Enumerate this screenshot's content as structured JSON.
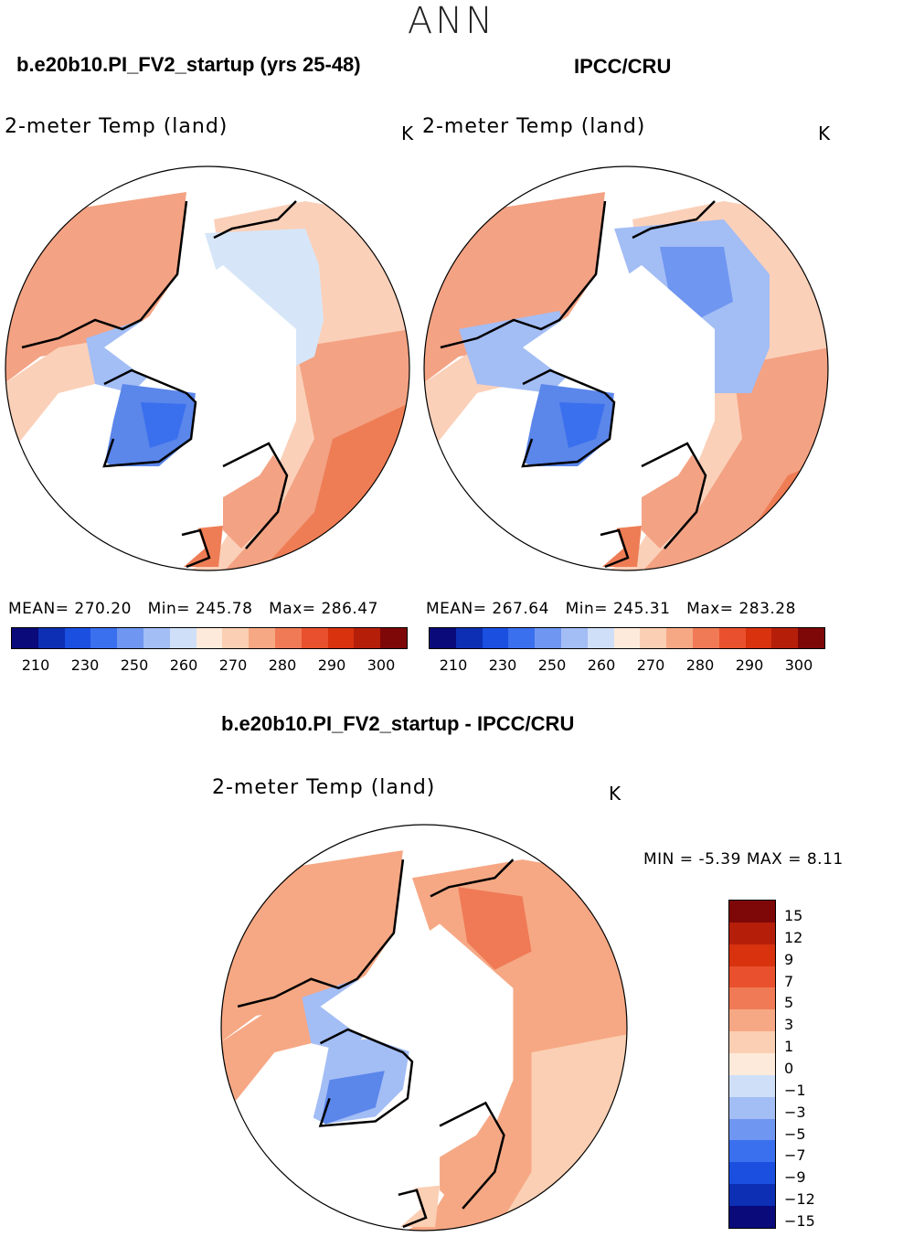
{
  "figure": {
    "season": "ANN",
    "panel1_case": "b.e20b10.PI_FV2_startup (yrs 25-48)",
    "panel2_case": "IPCC/CRU",
    "panel3_case": "b.e20b10.PI_FV2_startup - IPCC/CRU"
  },
  "colors": {
    "abs_scale": [
      "#0a0a7a",
      "#0c2fb3",
      "#1a4fe0",
      "#3a6fee",
      "#6f96f0",
      "#a3bdf5",
      "#cfdff8",
      "#fdeada",
      "#fbcfb3",
      "#f6a884",
      "#f07a56",
      "#e9502d",
      "#d8320f",
      "#b51f0a",
      "#7e0707"
    ],
    "diff_scale": [
      "#7e0707",
      "#b51f0a",
      "#d8320f",
      "#e9502d",
      "#f07a56",
      "#f6a884",
      "#fbcfb3",
      "#fdeada",
      "#cfdff8",
      "#a3bdf5",
      "#6f96f0",
      "#3a6fee",
      "#1a4fe0",
      "#0c2fb3",
      "#0a0a7a"
    ],
    "land_warm": "#f3a283",
    "land_light": "#fbd0b9",
    "land_cold": "#d6e6f8",
    "ice_blue": "#5b86ea"
  },
  "chart_data": [
    {
      "type": "heatmap",
      "projection": "north-polar-stereographic",
      "title": "b.e20b10.PI_FV2_startup (yrs 25-48)",
      "variable": "2-meter Temp (land)",
      "units": "K",
      "mean_label": "MEAN=",
      "mean": "270.20",
      "min_label": "Min=",
      "min": "245.78",
      "max_label": "Max=",
      "max": "286.47",
      "colorbar_ticks": [
        "210",
        "230",
        "250",
        "260",
        "270",
        "280",
        "290",
        "300"
      ]
    },
    {
      "type": "heatmap",
      "projection": "north-polar-stereographic",
      "title": "IPCC/CRU",
      "variable": "2-meter Temp (land)",
      "units": "K",
      "mean_label": "MEAN=",
      "mean": "267.64",
      "min_label": "Min=",
      "min": "245.31",
      "max_label": "Max=",
      "max": "283.28",
      "colorbar_ticks": [
        "210",
        "230",
        "250",
        "260",
        "270",
        "280",
        "290",
        "300"
      ]
    },
    {
      "type": "heatmap",
      "projection": "north-polar-stereographic",
      "title": "b.e20b10.PI_FV2_startup - IPCC/CRU",
      "variable": "2-meter Temp (land)",
      "units": "K",
      "min_label": "MIN =",
      "min": "-5.39",
      "max_label": "MAX =",
      "max": "8.11",
      "colorbar_ticks": [
        "15",
        "12",
        "9",
        "7",
        "5",
        "3",
        "1",
        "0",
        "−1",
        "−3",
        "−5",
        "−7",
        "−9",
        "−12",
        "−15"
      ]
    }
  ]
}
